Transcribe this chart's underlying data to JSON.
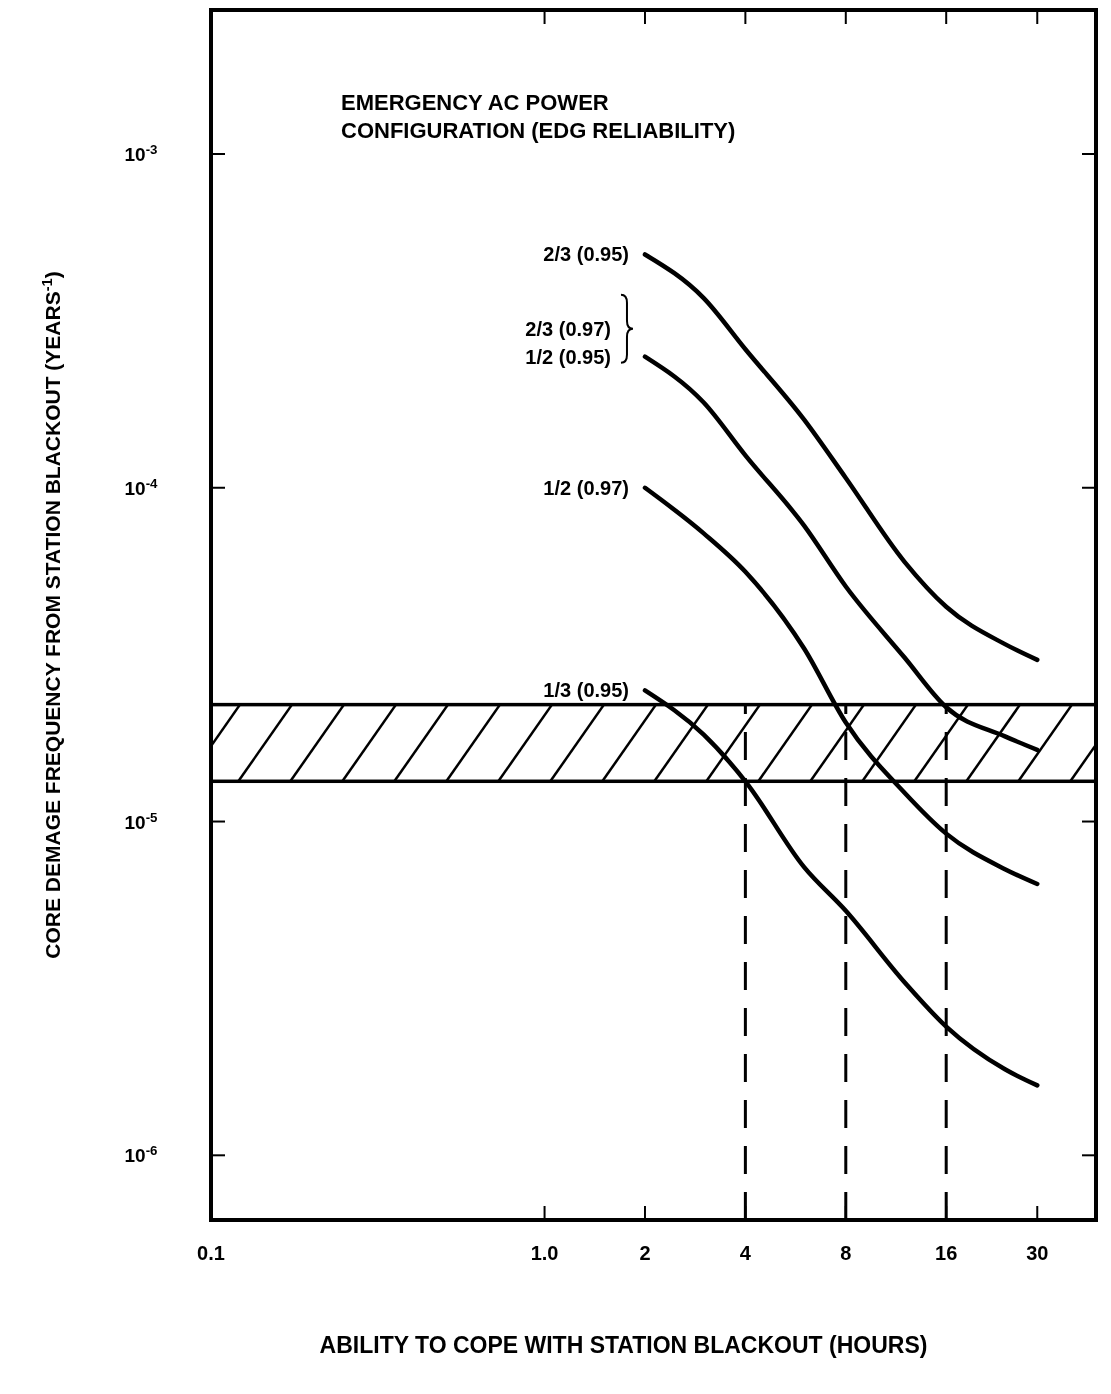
{
  "chart_data": {
    "type": "line",
    "legend_title": "EMERGENCY AC POWER\nCONFIGURATION (EDG RELIABILITY)",
    "xlabel": "ABILITY TO COPE WITH STATION BLACKOUT (HOURS)",
    "ylabel": "CORE DEMAGE FREQUENCY FROM STATION BLACKOUT (YEARS$^{-1}$)",
    "log": "xy",
    "legend": false,
    "grid": false,
    "marker": "none",
    "line_style": "solid",
    "x": [
      2,
      3,
      4,
      6,
      8,
      12,
      16,
      24,
      30
    ],
    "xlim": [
      0.1,
      45
    ],
    "ylim": [
      6.4e-07,
      0.0027
    ],
    "xticks": [
      0.1,
      {
        "value": 1,
        "label": "1.0"
      },
      2,
      4,
      8,
      16,
      30
    ],
    "yticks": [
      {
        "value": 0.001,
        "label": "10$^{-3}$"
      },
      {
        "value": 0.0001,
        "label": "10$^{-4}$"
      },
      {
        "value": 1e-05,
        "label": "10$^{-5}$"
      },
      {
        "value": 1e-06,
        "label": "10$^{-6}$"
      }
    ],
    "series": [
      {
        "name": "2/3 (0.95)",
        "color": "#000000",
        "values": [
          0.0005,
          0.00037,
          0.00026,
          0.00016,
          0.000107,
          6e-05,
          4.4e-05,
          3.4e-05,
          3.05e-05
        ]
      },
      {
        "name": "2/3 (0.97)\n1/2 (0.95)",
        "color": "#000000",
        "values": [
          0.000247,
          0.00018,
          0.000125,
          7.7e-05,
          5.06e-05,
          3.1e-05,
          2.2e-05,
          1.8e-05,
          1.64e-05
        ]
      },
      {
        "name": "1/2 (0.97)",
        "color": "#000000",
        "values": [
          0.0001,
          7.3e-05,
          5.6e-05,
          3.3e-05,
          1.98e-05,
          1.22e-05,
          9.2e-06,
          7.2e-06,
          6.5e-06
        ]
      },
      {
        "name": "1/3 (0.95)",
        "color": "#000000",
        "values": [
          2.47e-05,
          1.82e-05,
          1.32e-05,
          7.3e-06,
          5.4e-06,
          3.3e-06,
          2.43e-06,
          1.81e-06,
          1.62e-06
        ]
      }
    ],
    "bands": [
      {
        "axis": "y",
        "from": 1.32e-05,
        "to": 2.24e-05,
        "color": "#000000"
      }
    ],
    "ref_lines": [
      {
        "axis": "x",
        "value": 4,
        "line_style": "dashed",
        "color": "#000000"
      },
      {
        "axis": "x",
        "value": 8,
        "line_style": "dashed",
        "color": "#000000"
      },
      {
        "axis": "x",
        "value": 16,
        "line_style": "dashed",
        "color": "#000000"
      }
    ]
  }
}
